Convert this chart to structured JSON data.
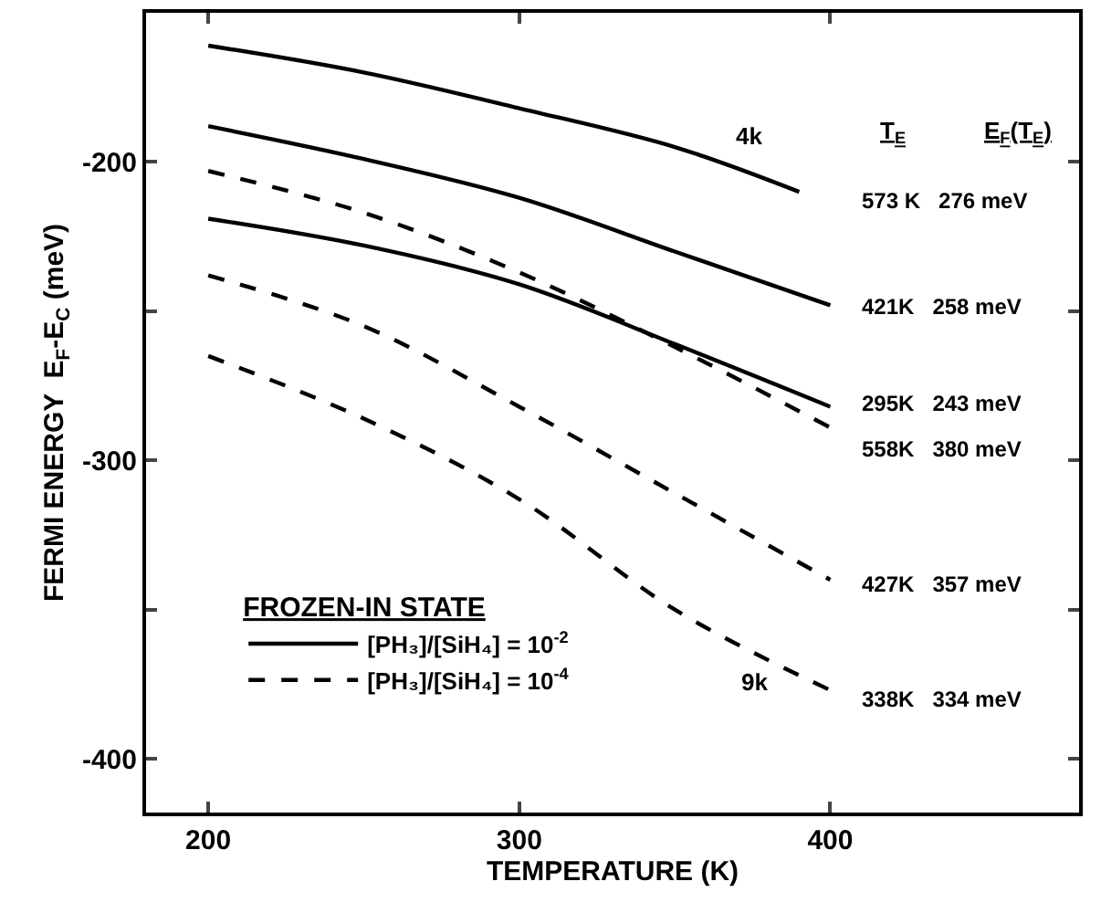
{
  "chart_data": {
    "type": "line",
    "xlabel": "TEMPERATURE (K)",
    "ylabel": "FERMI ENERGY  E$_{F}$-E$_{C}$ (meV)",
    "x": [
      200,
      250,
      300,
      350,
      400
    ],
    "xlim": [
      180,
      480
    ],
    "ylim": [
      -418,
      -150
    ],
    "xticks": [
      200,
      300,
      400
    ],
    "yticks": [
      -200,
      {
        "value": -250,
        "label": null
      },
      -300,
      {
        "value": -350,
        "label": null
      },
      -400
    ],
    "legend": "bottom left",
    "legend_title": "FROZEN-IN STATE",
    "series": [
      {
        "color": "#000000",
        "line_style": "solid",
        "x": [
          200,
          250,
          300,
          350,
          390
        ],
        "values": [
          -161,
          -170,
          -182,
          -195,
          -210
        ]
      },
      {
        "name": "[PH₃]/[SiH₄] = 10$^{-2}$",
        "color": "#000000",
        "line_style": "solid",
        "values": [
          -188,
          -199,
          -212,
          -230,
          -248
        ]
      },
      {
        "color": "#000000",
        "line_style": "solid",
        "values": [
          -219,
          -228,
          -241,
          -261,
          -282
        ]
      },
      {
        "name": "[PH₃]/[SiH₄] = 10$^{-4}$",
        "color": "#000000",
        "line_style": "dashed",
        "values": [
          -203,
          -217,
          -237,
          -262,
          -289
        ]
      },
      {
        "color": "#000000",
        "line_style": "dashed",
        "values": [
          -238,
          -255,
          -282,
          -311,
          -340
        ]
      },
      {
        "color": "#000000",
        "line_style": "dashed",
        "values": [
          -265,
          -286,
          -313,
          -350,
          -377
        ]
      }
    ],
    "annotations": [
      "4k",
      "9k",
      "T$_{E}$",
      "E$_{F}$(T$_{E}$)",
      "573 K   276 meV",
      "421K   258 meV",
      "295K   243 meV",
      "558K   380 meV",
      "427K   357 meV",
      "338K   334 meV"
    ]
  }
}
